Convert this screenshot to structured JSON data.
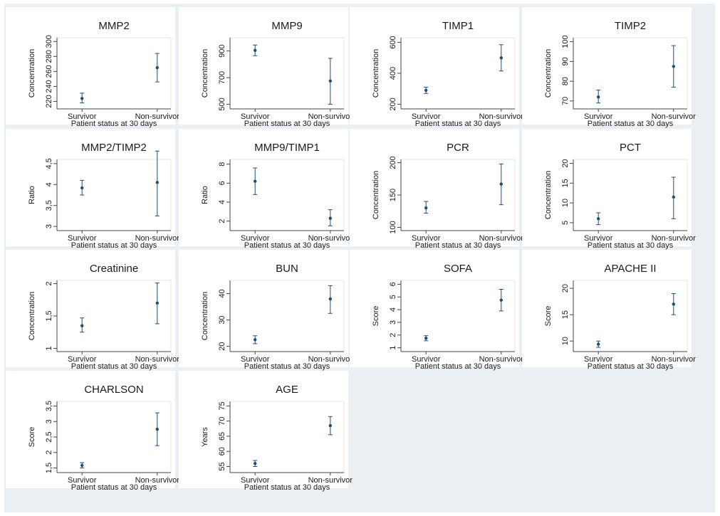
{
  "chart_data": [
    {
      "type": "scatter",
      "title": "MMP2",
      "ylabel": "Concentration",
      "xlabel": "Patient status at 30 days",
      "categories": [
        "Survivor",
        "Non-survivor"
      ],
      "ylim": [
        210,
        305
      ],
      "yticks": [
        220,
        240,
        260,
        280,
        300
      ],
      "ytick_labels": [
        "220",
        "240",
        "260",
        "280",
        "300"
      ],
      "values": [
        224,
        265
      ],
      "ci_low": [
        218,
        246
      ],
      "ci_high": [
        231,
        284
      ]
    },
    {
      "type": "scatter",
      "title": "MMP9",
      "ylabel": "Concentration",
      "xlabel": "Patient status at 30 days",
      "categories": [
        "Survivor",
        "Non-survivor"
      ],
      "ylim": [
        465,
        1000
      ],
      "yticks": [
        500,
        700,
        900
      ],
      "ytick_labels": [
        "500",
        "700",
        "900"
      ],
      "values": [
        905,
        675
      ],
      "ci_low": [
        865,
        500
      ],
      "ci_high": [
        945,
        845
      ]
    },
    {
      "type": "scatter",
      "title": "TIMP1",
      "ylabel": "Concentration",
      "xlabel": "Patient status at 30 days",
      "categories": [
        "Survivor",
        "Non-survivor"
      ],
      "ylim": [
        170,
        630
      ],
      "yticks": [
        200,
        400,
        600
      ],
      "ytick_labels": [
        "200",
        "400",
        "600"
      ],
      "values": [
        290,
        500
      ],
      "ci_low": [
        270,
        415
      ],
      "ci_high": [
        310,
        585
      ]
    },
    {
      "type": "scatter",
      "title": "TIMP2",
      "ylabel": "Concentration",
      "xlabel": "Patient status at 30 days",
      "categories": [
        "Survivor",
        "Non-survivor"
      ],
      "ylim": [
        66,
        102
      ],
      "yticks": [
        70,
        80,
        90,
        100
      ],
      "ytick_labels": [
        "70",
        "80",
        "90",
        "100"
      ],
      "values": [
        72,
        87.5
      ],
      "ci_low": [
        69,
        77
      ],
      "ci_high": [
        75.5,
        98
      ]
    },
    {
      "type": "scatter",
      "title": "MMP2/TIMP2",
      "ylabel": "Ratio",
      "xlabel": "Patient status at 30 days",
      "categories": [
        "Survivor",
        "Non-survivor"
      ],
      "ylim": [
        2.9,
        4.6
      ],
      "yticks": [
        3,
        3.5,
        4,
        4.5
      ],
      "ytick_labels": [
        "3",
        "3,5",
        "4",
        "4,5"
      ],
      "values": [
        3.92,
        4.05
      ],
      "ci_low": [
        3.75,
        3.25
      ],
      "ci_high": [
        4.1,
        4.8
      ]
    },
    {
      "type": "scatter",
      "title": "MMP9/TIMP1",
      "ylabel": "Ratio",
      "xlabel": "Patient status at 30 days",
      "categories": [
        "Survivor",
        "Non-survivor"
      ],
      "ylim": [
        1,
        8.5
      ],
      "yticks": [
        2,
        4,
        6,
        8
      ],
      "ytick_labels": [
        "2",
        "4",
        "6",
        "8"
      ],
      "values": [
        6.2,
        2.3
      ],
      "ci_low": [
        4.8,
        1.5
      ],
      "ci_high": [
        7.6,
        3.2
      ]
    },
    {
      "type": "scatter",
      "title": "PCR",
      "ylabel": "Concentration",
      "xlabel": "Patient status at 30 days",
      "categories": [
        "Survivor",
        "Non-survivor"
      ],
      "ylim": [
        95,
        205
      ],
      "yticks": [
        100,
        150,
        200
      ],
      "ytick_labels": [
        "100",
        "150",
        "200"
      ],
      "values": [
        130,
        167
      ],
      "ci_low": [
        122,
        135
      ],
      "ci_high": [
        140,
        198
      ]
    },
    {
      "type": "scatter",
      "title": "PCT",
      "ylabel": "Concentration",
      "xlabel": "Patient status at 30 days",
      "categories": [
        "Survivor",
        "Non-survivor"
      ],
      "ylim": [
        3,
        21
      ],
      "yticks": [
        5,
        10,
        15,
        20
      ],
      "ytick_labels": [
        "5",
        "10",
        "15",
        "20"
      ],
      "values": [
        6,
        11.5
      ],
      "ci_low": [
        4.5,
        6
      ],
      "ci_high": [
        7.5,
        16.5
      ]
    },
    {
      "type": "scatter",
      "title": "Creatinine",
      "ylabel": "Concentration",
      "xlabel": "Patient status at 30 days",
      "categories": [
        "Survivor",
        "Non-survivor"
      ],
      "ylim": [
        0.95,
        2.05
      ],
      "yticks": [
        1,
        1.5,
        2
      ],
      "ytick_labels": [
        "1",
        "1,5",
        "2"
      ],
      "values": [
        1.35,
        1.7
      ],
      "ci_low": [
        1.25,
        1.38
      ],
      "ci_high": [
        1.47,
        2.01
      ]
    },
    {
      "type": "scatter",
      "title": "BUN",
      "ylabel": "Concentration",
      "xlabel": "Patient status at 30 days",
      "categories": [
        "Survivor",
        "Non-survivor"
      ],
      "ylim": [
        18,
        45
      ],
      "yticks": [
        20,
        30,
        40
      ],
      "ytick_labels": [
        "20",
        "30",
        "40"
      ],
      "values": [
        22.5,
        38
      ],
      "ci_low": [
        21,
        32.5
      ],
      "ci_high": [
        24,
        43
      ]
    },
    {
      "type": "scatter",
      "title": "SOFA",
      "ylabel": "Score",
      "xlabel": "Patient status at 30 days",
      "categories": [
        "Survivor",
        "Non-survivor"
      ],
      "ylim": [
        0.7,
        6.3
      ],
      "yticks": [
        1,
        2,
        3,
        4,
        5,
        6
      ],
      "ytick_labels": [
        "1",
        "2",
        "3",
        "4",
        "5",
        "6"
      ],
      "values": [
        1.75,
        4.75
      ],
      "ci_low": [
        1.55,
        3.9
      ],
      "ci_high": [
        1.95,
        5.6
      ]
    },
    {
      "type": "scatter",
      "title": "APACHE II",
      "ylabel": "Score",
      "xlabel": "Patient status at 30 days",
      "categories": [
        "Survivor",
        "Non-survivor"
      ],
      "ylim": [
        8,
        21.5
      ],
      "yticks": [
        10,
        15,
        20
      ],
      "ytick_labels": [
        "10",
        "15",
        "20"
      ],
      "values": [
        9.4,
        17
      ],
      "ci_low": [
        8.8,
        15
      ],
      "ci_high": [
        10,
        19
      ]
    },
    {
      "type": "scatter",
      "title": "CHARLSON",
      "ylabel": "Score",
      "xlabel": "Patient status at 30 days",
      "categories": [
        "Survivor",
        "Non-survivor"
      ],
      "ylim": [
        1.35,
        3.65
      ],
      "yticks": [
        1.5,
        2,
        2.5,
        3,
        3.5
      ],
      "ytick_labels": [
        "1,5",
        "2",
        "2,5",
        "3",
        "3,5"
      ],
      "values": [
        1.58,
        2.75
      ],
      "ci_low": [
        1.5,
        2.22
      ],
      "ci_high": [
        1.67,
        3.28
      ]
    },
    {
      "type": "scatter",
      "title": "AGE",
      "ylabel": "Years",
      "xlabel": "Patient status at 30 days",
      "categories": [
        "Survivor",
        "Non-survivor"
      ],
      "ylim": [
        53,
        76.5
      ],
      "yticks": [
        55,
        60,
        65,
        70,
        75
      ],
      "ytick_labels": [
        "55",
        "60",
        "65",
        "70",
        "75"
      ],
      "values": [
        56,
        68.5
      ],
      "ci_low": [
        55,
        65.5
      ],
      "ci_high": [
        57,
        71.5
      ]
    }
  ],
  "colors": {
    "background": "#e9eff3",
    "panel": "#ffffff",
    "marker": "#1d4f73",
    "axis": "#444444"
  }
}
